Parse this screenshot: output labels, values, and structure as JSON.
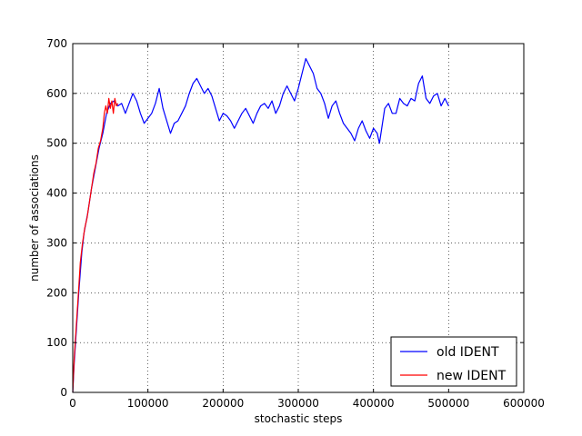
{
  "chart_data": {
    "type": "line",
    "title": "",
    "xlabel": "stochastic steps",
    "ylabel": "number of associations",
    "xlim": [
      0,
      600000
    ],
    "ylim": [
      0,
      700
    ],
    "xticks": [
      0,
      100000,
      200000,
      300000,
      400000,
      500000,
      600000
    ],
    "xtick_labels": [
      "0",
      "100000",
      "200000",
      "300000",
      "400000",
      "500000",
      "600000"
    ],
    "yticks": [
      0,
      100,
      200,
      300,
      400,
      500,
      600,
      700
    ],
    "ytick_labels": [
      "0",
      "100",
      "200",
      "300",
      "400",
      "500",
      "600",
      "700"
    ],
    "grid": true,
    "legend_position": "bottom-right",
    "series": [
      {
        "name": "old IDENT",
        "color": "#0000ff",
        "points": [
          [
            0,
            0
          ],
          [
            2000,
            60
          ],
          [
            5000,
            130
          ],
          [
            8000,
            200
          ],
          [
            12000,
            280
          ],
          [
            15000,
            320
          ],
          [
            20000,
            360
          ],
          [
            25000,
            410
          ],
          [
            30000,
            450
          ],
          [
            35000,
            490
          ],
          [
            40000,
            520
          ],
          [
            45000,
            560
          ],
          [
            50000,
            580
          ],
          [
            55000,
            585
          ],
          [
            60000,
            575
          ],
          [
            65000,
            580
          ],
          [
            70000,
            560
          ],
          [
            75000,
            580
          ],
          [
            80000,
            600
          ],
          [
            85000,
            585
          ],
          [
            90000,
            560
          ],
          [
            95000,
            540
          ],
          [
            100000,
            550
          ],
          [
            105000,
            560
          ],
          [
            110000,
            580
          ],
          [
            115000,
            610
          ],
          [
            120000,
            570
          ],
          [
            125000,
            545
          ],
          [
            130000,
            520
          ],
          [
            135000,
            540
          ],
          [
            140000,
            545
          ],
          [
            145000,
            560
          ],
          [
            150000,
            575
          ],
          [
            155000,
            600
          ],
          [
            160000,
            620
          ],
          [
            165000,
            630
          ],
          [
            170000,
            615
          ],
          [
            175000,
            600
          ],
          [
            180000,
            610
          ],
          [
            185000,
            595
          ],
          [
            190000,
            570
          ],
          [
            195000,
            545
          ],
          [
            200000,
            560
          ],
          [
            205000,
            555
          ],
          [
            210000,
            545
          ],
          [
            215000,
            530
          ],
          [
            220000,
            545
          ],
          [
            225000,
            560
          ],
          [
            230000,
            570
          ],
          [
            235000,
            555
          ],
          [
            240000,
            540
          ],
          [
            245000,
            560
          ],
          [
            250000,
            575
          ],
          [
            255000,
            580
          ],
          [
            260000,
            570
          ],
          [
            265000,
            585
          ],
          [
            270000,
            560
          ],
          [
            275000,
            575
          ],
          [
            280000,
            600
          ],
          [
            285000,
            615
          ],
          [
            290000,
            600
          ],
          [
            295000,
            585
          ],
          [
            300000,
            610
          ],
          [
            305000,
            640
          ],
          [
            310000,
            670
          ],
          [
            315000,
            655
          ],
          [
            320000,
            640
          ],
          [
            325000,
            610
          ],
          [
            330000,
            600
          ],
          [
            335000,
            580
          ],
          [
            340000,
            550
          ],
          [
            345000,
            575
          ],
          [
            350000,
            585
          ],
          [
            355000,
            560
          ],
          [
            360000,
            540
          ],
          [
            365000,
            530
          ],
          [
            370000,
            520
          ],
          [
            375000,
            505
          ],
          [
            380000,
            530
          ],
          [
            385000,
            545
          ],
          [
            390000,
            525
          ],
          [
            395000,
            510
          ],
          [
            400000,
            530
          ],
          [
            405000,
            520
          ],
          [
            408000,
            500
          ],
          [
            410000,
            520
          ],
          [
            415000,
            570
          ],
          [
            420000,
            580
          ],
          [
            425000,
            560
          ],
          [
            430000,
            560
          ],
          [
            435000,
            590
          ],
          [
            440000,
            580
          ],
          [
            445000,
            575
          ],
          [
            450000,
            590
          ],
          [
            455000,
            585
          ],
          [
            460000,
            620
          ],
          [
            465000,
            635
          ],
          [
            470000,
            590
          ],
          [
            475000,
            580
          ],
          [
            480000,
            595
          ],
          [
            485000,
            600
          ],
          [
            490000,
            575
          ],
          [
            495000,
            590
          ],
          [
            500000,
            575
          ]
        ]
      },
      {
        "name": "new IDENT",
        "color": "#ff0000",
        "points": [
          [
            0,
            0
          ],
          [
            2000,
            70
          ],
          [
            5000,
            140
          ],
          [
            8000,
            210
          ],
          [
            10000,
            260
          ],
          [
            13000,
            300
          ],
          [
            16000,
            330
          ],
          [
            19000,
            350
          ],
          [
            22000,
            380
          ],
          [
            25000,
            410
          ],
          [
            28000,
            440
          ],
          [
            31000,
            460
          ],
          [
            34000,
            490
          ],
          [
            37000,
            505
          ],
          [
            40000,
            530
          ],
          [
            42000,
            560
          ],
          [
            44000,
            575
          ],
          [
            46000,
            560
          ],
          [
            48000,
            590
          ],
          [
            50000,
            570
          ],
          [
            52000,
            585
          ],
          [
            54000,
            560
          ],
          [
            56000,
            590
          ],
          [
            58000,
            575
          ],
          [
            60000,
            580
          ]
        ]
      }
    ]
  }
}
